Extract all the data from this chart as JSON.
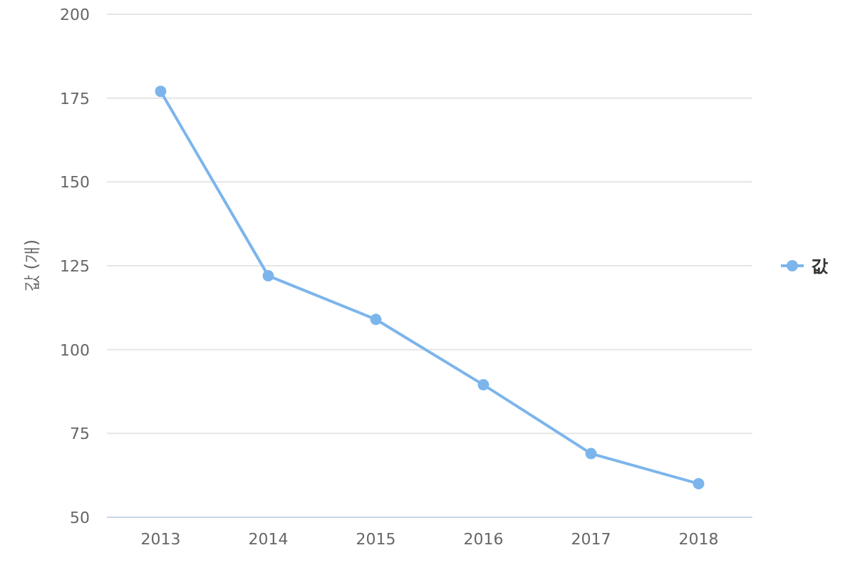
{
  "chart_data": {
    "type": "line",
    "categories": [
      "2013",
      "2014",
      "2015",
      "2016",
      "2017",
      "2018"
    ],
    "series": [
      {
        "name": "값",
        "color": "#7cb5ec",
        "values": [
          177,
          122,
          109,
          89.5,
          69,
          60
        ]
      }
    ],
    "ylabel": "값 (개)",
    "ylim": [
      50,
      200
    ],
    "yticks": [
      50,
      75,
      100,
      125,
      150,
      175,
      200
    ],
    "grid": "y",
    "legend": "right",
    "marker": "circle",
    "line_style": "solid"
  }
}
